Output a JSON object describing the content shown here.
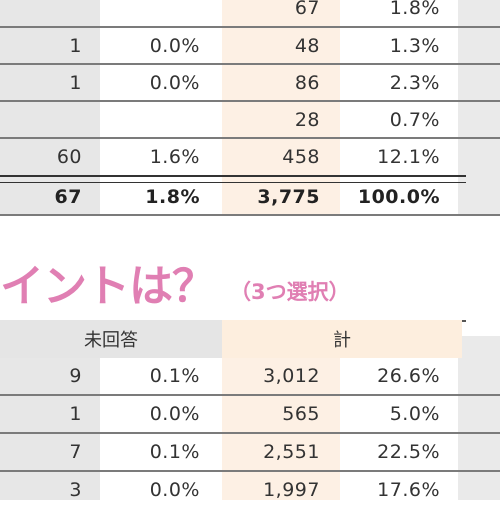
{
  "table1": {
    "rows": [
      {
        "c1": "",
        "c2": "",
        "c3": "67",
        "c4": "1.8%"
      },
      {
        "c1": "1",
        "c2": "0.0%",
        "c3": "48",
        "c4": "1.3%"
      },
      {
        "c1": "1",
        "c2": "0.0%",
        "c3": "86",
        "c4": "2.3%"
      },
      {
        "c1": "",
        "c2": "",
        "c3": "28",
        "c4": "0.7%"
      },
      {
        "c1": "60",
        "c2": "1.6%",
        "c3": "458",
        "c4": "12.1%"
      }
    ],
    "total": {
      "c1": "67",
      "c2": "1.8%",
      "c3": "3,775",
      "c4": "100.0%"
    }
  },
  "heading": {
    "main": "イントは？",
    "sub": "（3つ選択）",
    "color": "#e07fb3"
  },
  "table2": {
    "header_unanswered": "未回答",
    "header_total": "計",
    "rows": [
      {
        "c1": "9",
        "c2": "0.1%",
        "c3": "3,012",
        "c4": "26.6%"
      },
      {
        "c1": "1",
        "c2": "0.0%",
        "c3": "565",
        "c4": "5.0%"
      },
      {
        "c1": "7",
        "c2": "0.1%",
        "c3": "2,551",
        "c4": "22.5%"
      },
      {
        "c1": "3",
        "c2": "0.0%",
        "c3": "1,997",
        "c4": "17.6%"
      }
    ]
  }
}
